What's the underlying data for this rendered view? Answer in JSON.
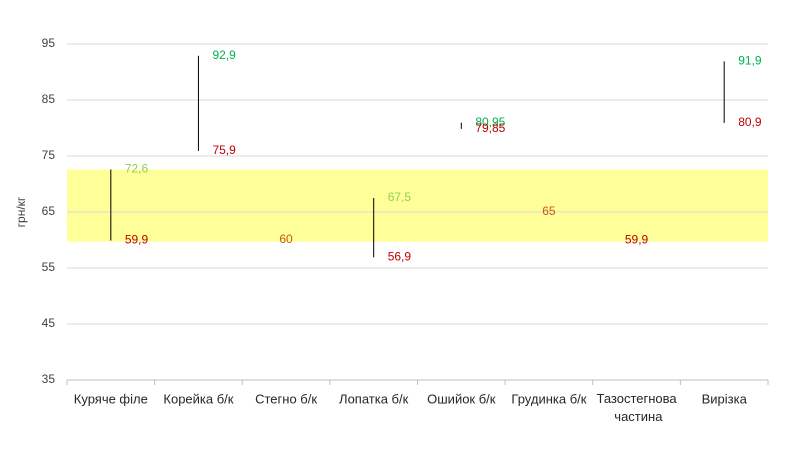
{
  "chart_data": {
    "type": "high-low",
    "y_label": "грн/кг",
    "categories": [
      "Куряче філе",
      "Корейка б/к",
      "Стегно б/к",
      "Лопатка б/к",
      "Ошийок б/к",
      "Грудинка б/к",
      "Тазостегнова частина",
      "Вирізка"
    ],
    "series": [
      {
        "name": "max",
        "values": [
          72.6,
          92.9,
          60,
          67.5,
          80.95,
          65,
          59.9,
          91.9
        ],
        "value_labels": [
          "72,6",
          "92,9",
          null,
          "67,5",
          "80,95",
          "65",
          null,
          "91,9"
        ],
        "label_colors": [
          "#92d050",
          "#00b050",
          null,
          "#92d050",
          "#00b050",
          "#c65911",
          null,
          "#00b050"
        ]
      },
      {
        "name": "min",
        "values": [
          59.9,
          75.9,
          60,
          56.9,
          79.85,
          65,
          59.9,
          80.9
        ],
        "value_labels": [
          "59,9",
          "75,9",
          "60",
          "56,9",
          "79,85",
          null,
          "59,9",
          "80,9"
        ],
        "label_colors": [
          "#c00000",
          "#c00000",
          "#c65911",
          "#c00000",
          "#c00000",
          null,
          "#c00000",
          "#c00000"
        ]
      }
    ],
    "line_color": "#000000",
    "band": {
      "range": [
        59.7,
        72.6
      ],
      "color": "#ffff99"
    },
    "ylim": [
      35,
      95
    ],
    "yticks": [
      35,
      45,
      55,
      65,
      75,
      85,
      95
    ],
    "grid": true
  }
}
